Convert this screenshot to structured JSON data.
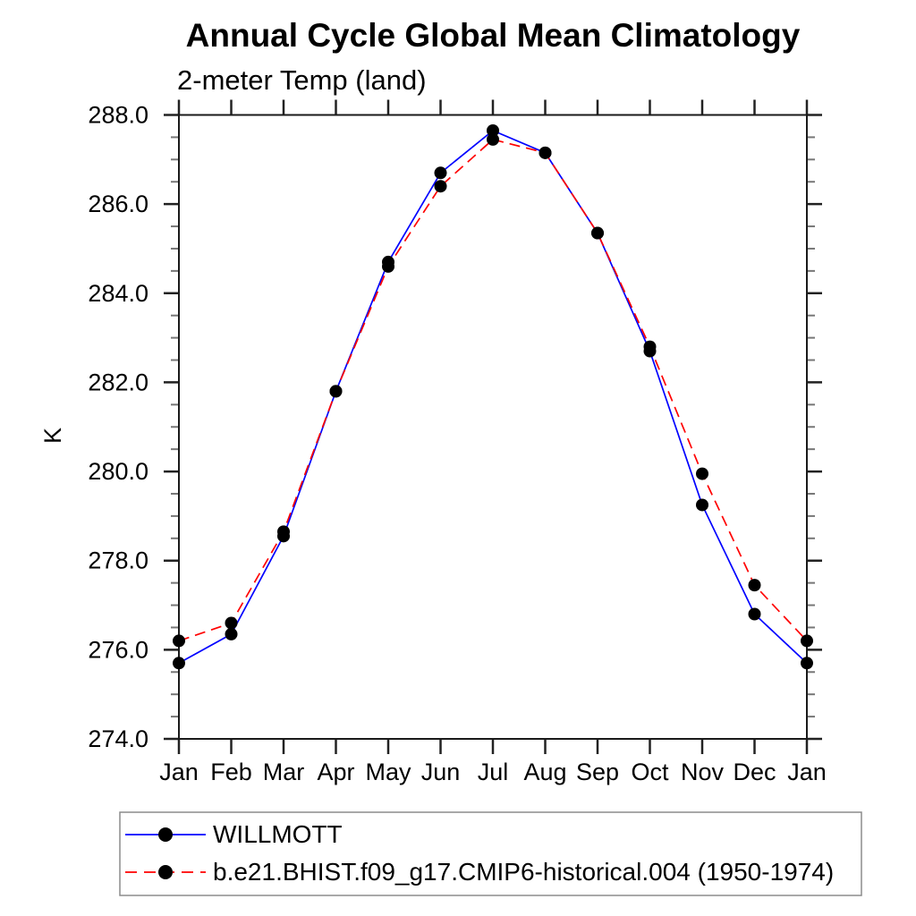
{
  "title": "Annual Cycle Global Mean Climatology",
  "subtitle": "2-meter Temp (land)",
  "ylabel": "K",
  "legend": {
    "border_color": "#8c8c8c",
    "entries": [
      {
        "label": "WILLMOTT"
      },
      {
        "label": "b.e21.BHIST.f09_g17.CMIP6-historical.004 (1950-1974)"
      }
    ]
  },
  "chart_data": {
    "type": "line",
    "title": "Annual Cycle Global Mean Climatology",
    "subtitle": "2-meter Temp (land)",
    "xlabel": "",
    "ylabel": "K",
    "categories": [
      "Jan",
      "Feb",
      "Mar",
      "Apr",
      "May",
      "Jun",
      "Jul",
      "Aug",
      "Sep",
      "Oct",
      "Nov",
      "Dec",
      "Jan"
    ],
    "series": [
      {
        "name": "WILLMOTT",
        "color": "#0000ff",
        "line": "solid",
        "marker": "filled-circle",
        "marker_color": "#000000",
        "values": [
          275.7,
          276.35,
          278.55,
          281.8,
          284.7,
          286.7,
          287.65,
          287.15,
          285.35,
          282.7,
          279.25,
          276.8,
          275.7
        ]
      },
      {
        "name": "b.e21.BHIST.f09_g17.CMIP6-historical.004 (1950-1974)",
        "color": "#ff0000",
        "line": "dashed",
        "marker": "filled-circle",
        "marker_color": "#000000",
        "values": [
          276.2,
          276.6,
          278.65,
          281.8,
          284.6,
          286.4,
          287.45,
          287.15,
          285.35,
          282.8,
          279.95,
          277.45,
          276.2
        ]
      }
    ],
    "ylim": [
      274.0,
      288.0
    ],
    "ytick_major": 2.0,
    "ytick_minor": 0.5,
    "ytick_labels": [
      "274.0",
      "276.0",
      "278.0",
      "280.0",
      "282.0",
      "284.0",
      "286.0",
      "288.0"
    ],
    "grid": false,
    "ticks": "outward-all-four-sides",
    "legend_position": "bottom-left"
  }
}
